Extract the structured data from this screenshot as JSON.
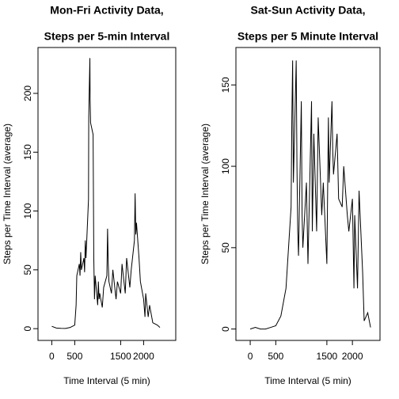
{
  "chart_data": [
    {
      "type": "line",
      "title": [
        "Mon-Fri Activity Data,",
        "Steps per 5-min Interval"
      ],
      "xlabel": "Time Interval (5 min)",
      "ylabel": "Steps per Time Interval (average)",
      "x": [
        0,
        100,
        200,
        300,
        400,
        500,
        530,
        545,
        600,
        615,
        630,
        645,
        700,
        715,
        730,
        745,
        800,
        805,
        815,
        830,
        835,
        845,
        900,
        915,
        930,
        945,
        1000,
        1015,
        1030,
        1045,
        1100,
        1130,
        1200,
        1215,
        1230,
        1245,
        1300,
        1330,
        1400,
        1430,
        1500,
        1530,
        1600,
        1630,
        1700,
        1730,
        1800,
        1815,
        1830,
        1845,
        1900,
        1930,
        2000,
        2030,
        2045,
        2100,
        2130,
        2200,
        2300,
        2355
      ],
      "series": [
        {
          "name": "Mon-Fri",
          "color": "#000000",
          "values": [
            2,
            0.5,
            0.3,
            0.2,
            1,
            3,
            20,
            45,
            55,
            45,
            65,
            50,
            60,
            48,
            75,
            60,
            110,
            180,
            200,
            230,
            195,
            175,
            165,
            60,
            25,
            45,
            20,
            40,
            25,
            30,
            18,
            35,
            45,
            85,
            55,
            40,
            30,
            50,
            25,
            40,
            30,
            55,
            30,
            60,
            35,
            50,
            75,
            115,
            80,
            90,
            60,
            40,
            25,
            10,
            30,
            10,
            20,
            5,
            3,
            1
          ]
        }
      ],
      "xlim": [
        -300,
        2700
      ],
      "xticks": [
        0,
        500,
        1500,
        2000
      ],
      "ylim": [
        -10,
        239
      ],
      "yticks": [
        0,
        50,
        100,
        150,
        200
      ]
    },
    {
      "type": "line",
      "title": [
        "Sat-Sun Activity Data,",
        "Steps per 5 Minute Interval"
      ],
      "xlabel": "Time Interval (5 min)",
      "ylabel": "Steps per Time Interval (average)",
      "x": [
        0,
        100,
        200,
        300,
        400,
        500,
        600,
        700,
        730,
        800,
        815,
        830,
        845,
        900,
        915,
        930,
        945,
        1000,
        1015,
        1030,
        1100,
        1130,
        1200,
        1215,
        1245,
        1300,
        1330,
        1400,
        1430,
        1500,
        1530,
        1545,
        1600,
        1615,
        1630,
        1700,
        1730,
        1800,
        1830,
        1900,
        1930,
        2000,
        2030,
        2045,
        2100,
        2130,
        2200,
        2230,
        2300,
        2355
      ],
      "series": [
        {
          "name": "Sat-Sun",
          "color": "#000000",
          "values": [
            0,
            1,
            0,
            0,
            1,
            2,
            8,
            25,
            40,
            75,
            130,
            165,
            90,
            165,
            100,
            60,
            45,
            140,
            70,
            50,
            90,
            40,
            140,
            60,
            120,
            60,
            130,
            70,
            90,
            40,
            130,
            90,
            140,
            110,
            95,
            120,
            80,
            75,
            100,
            70,
            60,
            80,
            25,
            70,
            25,
            85,
            35,
            5,
            10,
            1
          ]
        }
      ],
      "xlim": [
        -280,
        2540
      ],
      "xticks": [
        0,
        500,
        1500,
        2000
      ],
      "ylim": [
        -7,
        173
      ],
      "yticks": [
        0,
        50,
        100,
        150
      ]
    }
  ]
}
